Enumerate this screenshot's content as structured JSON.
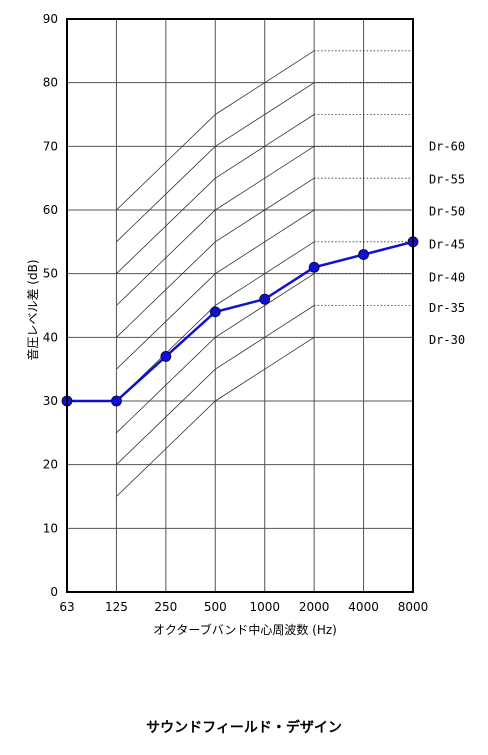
{
  "chart_data": {
    "type": "line",
    "xlabel": "オクターブバンド中心周波数 (Hz)",
    "ylabel": "音圧レベル差 (dB)",
    "x_categories": [
      "63",
      "125",
      "250",
      "500",
      "1000",
      "2000",
      "4000",
      "8000"
    ],
    "y_ticks": [
      0,
      10,
      20,
      30,
      40,
      50,
      60,
      70,
      80,
      90
    ],
    "ylim": [
      0,
      90
    ],
    "grid": true,
    "reference_curves": [
      {
        "name": "Dr-60",
        "values": [
          null,
          60,
          67.5,
          75,
          80,
          85,
          85,
          85
        ]
      },
      {
        "name": "Dr-55",
        "values": [
          null,
          55,
          62.5,
          70,
          75,
          80,
          80,
          80
        ]
      },
      {
        "name": "Dr-50",
        "values": [
          null,
          50,
          57.5,
          65,
          70,
          75,
          75,
          75
        ]
      },
      {
        "name": "Dr-45",
        "values": [
          null,
          45,
          52.5,
          60,
          65,
          70,
          70,
          70
        ]
      },
      {
        "name": "Dr-40",
        "values": [
          null,
          40,
          47.5,
          55,
          60,
          65,
          65,
          65
        ]
      },
      {
        "name": "Dr-35",
        "values": [
          null,
          35,
          42.5,
          50,
          55,
          60,
          60,
          60
        ]
      },
      {
        "name": "Dr-30",
        "values": [
          null,
          30,
          37.5,
          45,
          50,
          55,
          55,
          55
        ]
      },
      {
        "name": "",
        "values": [
          null,
          25,
          32.5,
          40,
          45,
          50,
          50,
          50
        ]
      },
      {
        "name": "",
        "values": [
          null,
          20,
          27.5,
          35,
          40,
          45,
          45,
          45
        ]
      },
      {
        "name": "",
        "values": [
          null,
          15,
          22.5,
          30,
          35,
          40,
          null,
          null
        ]
      }
    ],
    "series": [
      {
        "values": [
          30,
          30,
          37,
          44,
          46,
          51,
          53,
          55
        ],
        "color": "#1010d0"
      }
    ],
    "dr_labels": [
      "Dr-60",
      "Dr-55",
      "Dr-50",
      "Dr-45",
      "Dr-40",
      "Dr-35",
      "Dr-30"
    ],
    "dr_label_levels": [
      70,
      64.8,
      59.8,
      54.6,
      49.4,
      44.6,
      39.6
    ]
  },
  "footer": "サウンドフィールド・デザイン"
}
